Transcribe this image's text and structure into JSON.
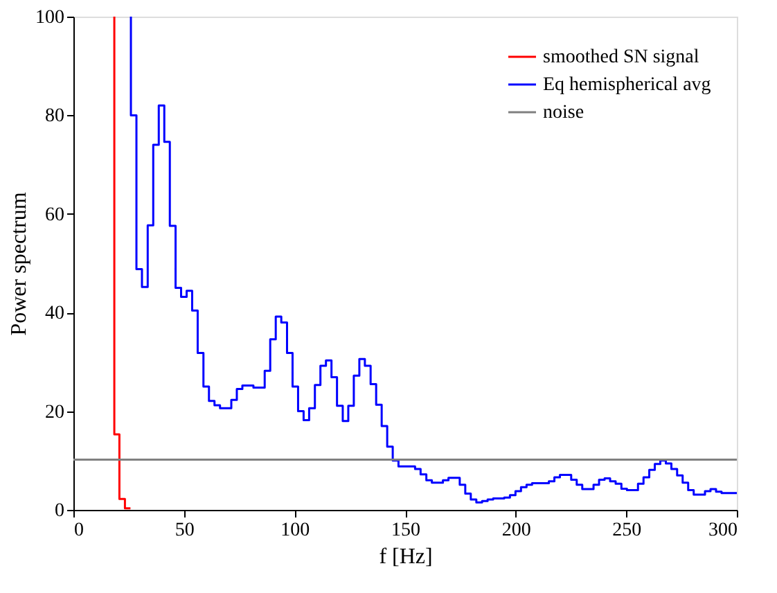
{
  "chart_data": {
    "type": "step",
    "xlabel": "f [Hz]",
    "ylabel": "Power spectrum",
    "xlim": [
      0,
      300
    ],
    "xticks": [
      0,
      50,
      100,
      150,
      200,
      250,
      300
    ],
    "ylim": [
      0,
      100
    ],
    "yticks": [
      0,
      20,
      40,
      60,
      80,
      100
    ],
    "grid": false,
    "legend": "top right",
    "line_style": "solid",
    "marker": "none",
    "series": [
      {
        "name": "smoothed SN signal",
        "color": "#ff0000",
        "x": [
          18.5,
          18.5,
          20.8,
          23.3,
          25.8
        ],
        "values": [
          100,
          15.3,
          2.2,
          0.3,
          0.3
        ]
      },
      {
        "name": "Eq hemispherical avg",
        "color": "#0000ff",
        "x": [
          26.0,
          26.0,
          28.5,
          31.0,
          33.6,
          36.1,
          38.6,
          41.1,
          43.6,
          46.2,
          48.7,
          51.2,
          53.7,
          56.2,
          58.8,
          61.3,
          63.8,
          66.3,
          68.8,
          71.4,
          73.9,
          76.4,
          78.9,
          81.4,
          84.0,
          86.5,
          89.0,
          91.5,
          94.0,
          96.6,
          99.1,
          101.6,
          104.1,
          106.6,
          109.2,
          111.7,
          114.2,
          116.7,
          119.2,
          121.8,
          124.3,
          126.8,
          129.3,
          131.8,
          134.4,
          136.9,
          139.4,
          141.9,
          144.4,
          147.0,
          149.5,
          152.0,
          154.5,
          157.0,
          159.6,
          162.1,
          164.6,
          167.1,
          169.6,
          172.2,
          174.7,
          177.2,
          179.7,
          182.2,
          184.8,
          187.3,
          189.8,
          192.3,
          194.8,
          197.4,
          199.9,
          202.4,
          204.9,
          207.4,
          210.0,
          212.5,
          215.0,
          217.5,
          220.0,
          222.6,
          225.1,
          227.6,
          230.1,
          232.6,
          235.2,
          237.7,
          240.2,
          242.7,
          245.2,
          247.8,
          250.3,
          252.8,
          255.3,
          257.8,
          260.4,
          262.9,
          265.4,
          267.9,
          270.4,
          273.0,
          275.5,
          278.0,
          280.5,
          283.0,
          285.6,
          288.1,
          290.6,
          293.1,
          295.6,
          298.2,
          300
        ],
        "values": [
          100,
          80,
          48.8,
          45.2,
          57.7,
          74,
          82,
          74.6,
          57.6,
          45,
          43.2,
          44.4,
          40.4,
          31.8,
          25,
          22.1,
          21.2,
          20.6,
          20.6,
          22.3,
          24.5,
          25.2,
          25.2,
          24.8,
          24.8,
          28.2,
          34.6,
          39.2,
          38,
          31.8,
          25,
          20,
          18.2,
          20.6,
          25.3,
          29.2,
          30.3,
          26.9,
          21.1,
          18.0,
          21.1,
          27.2,
          30.6,
          29.2,
          25.5,
          21.3,
          17.0,
          12.8,
          10.0,
          8.8,
          8.8,
          8.8,
          8.3,
          7.2,
          6.0,
          5.5,
          5.5,
          6.0,
          6.5,
          6.5,
          5.1,
          3.3,
          2.1,
          1.5,
          1.8,
          2.1,
          2.3,
          2.3,
          2.5,
          3.0,
          3.8,
          4.6,
          5.1,
          5.4,
          5.4,
          5.4,
          5.8,
          6.6,
          7.1,
          7.1,
          6.1,
          5.1,
          4.2,
          4.2,
          5.1,
          6.1,
          6.4,
          5.8,
          5.3,
          4.3,
          4.0,
          4.0,
          5.3,
          6.6,
          8.1,
          9.3,
          10.0,
          9.4,
          8.3,
          7.0,
          5.5,
          4.0,
          3.1,
          3.1,
          3.8,
          4.2,
          3.7,
          3.4,
          3.4,
          3.4,
          3.4
        ]
      },
      {
        "name": "noise",
        "color": "#808080",
        "type": "line",
        "x": [
          0,
          300
        ],
        "values": [
          10.2,
          10.2
        ]
      }
    ]
  }
}
